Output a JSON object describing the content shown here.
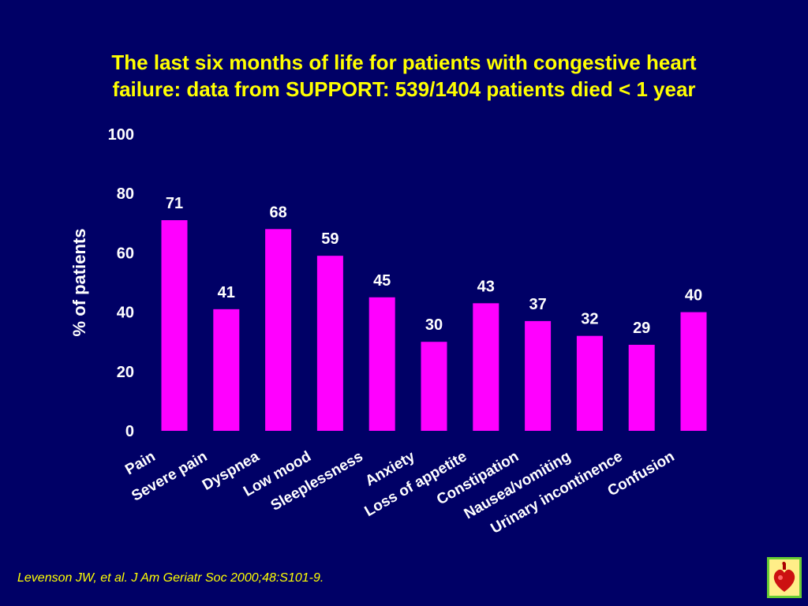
{
  "title_line1": "The last six months of life for patients with congestive heart",
  "title_line2": "failure: data from SUPPORT: 539/1404 patients died < 1 year",
  "citation": "Levenson JW, et al. J Am Geriatr Soc 2000;48:S101-9.",
  "colors": {
    "background": "#000066",
    "bar": "#FF00FF",
    "title": "#FFFF00",
    "text": "#FFFFFF"
  },
  "logo_icon": "heart-logo-icon",
  "chart_data": {
    "type": "bar",
    "categories": [
      "Pain",
      "Severe pain",
      "Dyspnea",
      "Low mood",
      "Sleeplessness",
      "Anxiety",
      "Loss of appetite",
      "Constipation",
      "Nausea/vomiting",
      "Urinary incontinence",
      "Confusion"
    ],
    "values": [
      71,
      41,
      68,
      59,
      45,
      30,
      43,
      37,
      32,
      29,
      40
    ],
    "ylabel": "% of patients",
    "xlabel": "",
    "ylim": [
      0,
      100
    ],
    "yticks": [
      0,
      20,
      40,
      60,
      80,
      100
    ],
    "grid": false,
    "data_labels": true
  }
}
